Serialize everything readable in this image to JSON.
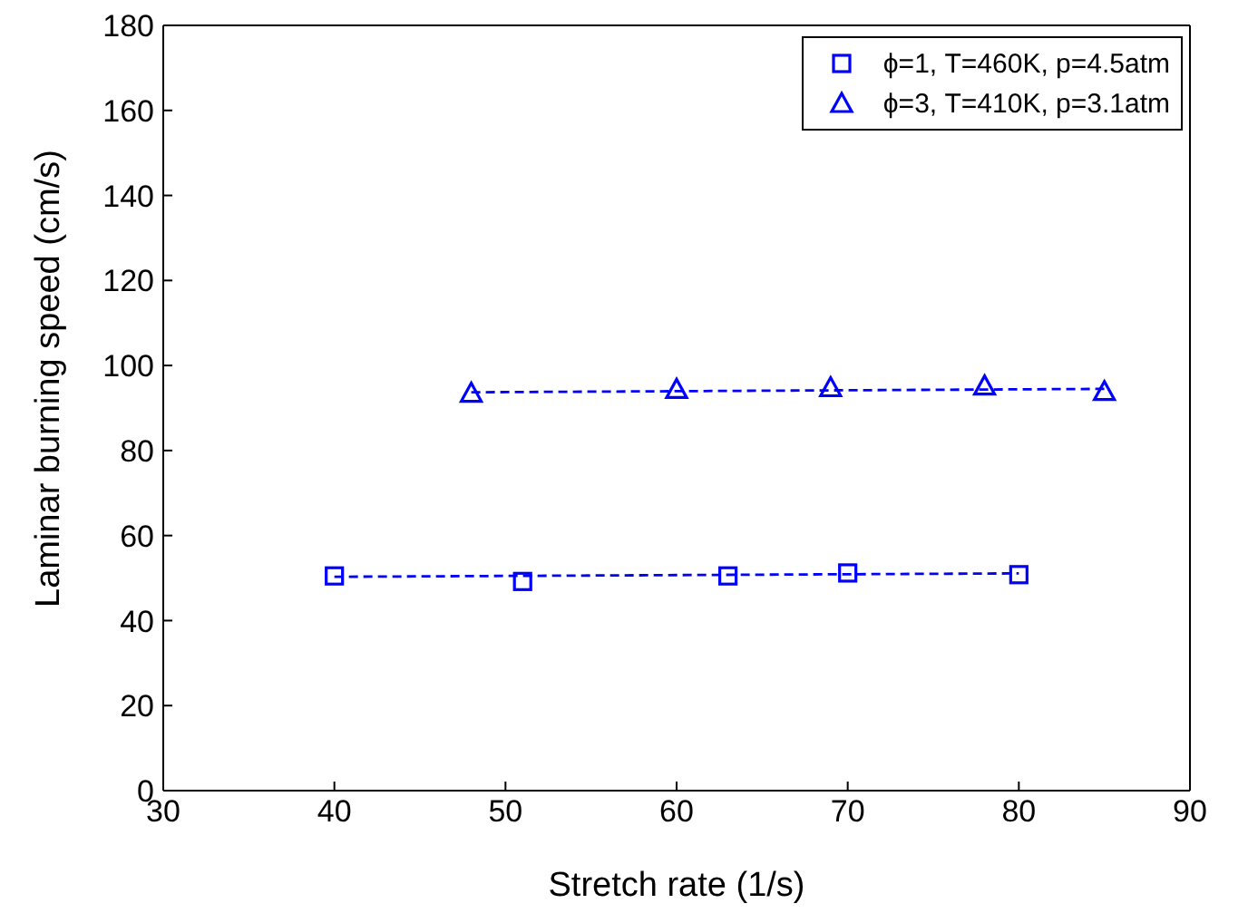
{
  "chart_data": {
    "type": "scatter",
    "xlabel": "Stretch rate (1/s)",
    "ylabel": "Laminar burning speed (cm/s)",
    "xlim": [
      30,
      90
    ],
    "xticks": [
      30,
      40,
      50,
      60,
      70,
      80,
      90
    ],
    "ylim": [
      0,
      180
    ],
    "yticks": [
      0,
      20,
      40,
      60,
      80,
      100,
      120,
      140,
      160,
      180
    ],
    "legend": "top right",
    "series": [
      {
        "name": "ϕ=1, T=460K, p=4.5atm",
        "marker": "square",
        "color": "#0000ff",
        "x": [
          40,
          51,
          63,
          70,
          80
        ],
        "values": [
          50.5,
          49.2,
          50.5,
          51.2,
          50.8
        ]
      },
      {
        "name": "ϕ=3, T=410K, p=3.1atm",
        "marker": "triangle",
        "color": "#0000ff",
        "x": [
          48,
          60,
          69,
          78,
          85
        ],
        "values": [
          93.5,
          94.4,
          94.8,
          95.2,
          93.9
        ]
      },
      {
        "type": "line",
        "line_style": "dashed",
        "marker": "none",
        "color": "#0000ff",
        "x": [
          40,
          80
        ],
        "values": [
          50.3,
          51.1
        ]
      },
      {
        "type": "line",
        "line_style": "dashed",
        "marker": "none",
        "color": "#0000ff",
        "x": [
          48,
          85
        ],
        "values": [
          93.7,
          94.5
        ]
      }
    ]
  }
}
